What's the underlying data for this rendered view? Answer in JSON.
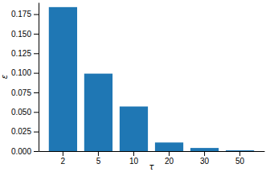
{
  "chart_data": {
    "type": "bar",
    "x_label": "τ",
    "y_label": "ε",
    "categories": [
      "2",
      "5",
      "10",
      "20",
      "30",
      "50"
    ],
    "values": [
      0.184,
      0.099,
      0.057,
      0.011,
      0.004,
      0.001
    ],
    "color": "#1f77b4",
    "ylim": [
      0,
      0.19
    ],
    "yticks": [
      {
        "value": 0,
        "label": "0.000"
      },
      {
        "value": 0.025,
        "label": "0.025"
      },
      {
        "value": 0.05,
        "label": "0.050"
      },
      {
        "value": 0.075,
        "label": "0.075"
      },
      {
        "value": 0.1,
        "label": "0.100"
      },
      {
        "value": 0.125,
        "label": "0.125"
      },
      {
        "value": 0.15,
        "label": "0.150"
      },
      {
        "value": 0.175,
        "label": "0.175"
      }
    ],
    "grid": false
  }
}
